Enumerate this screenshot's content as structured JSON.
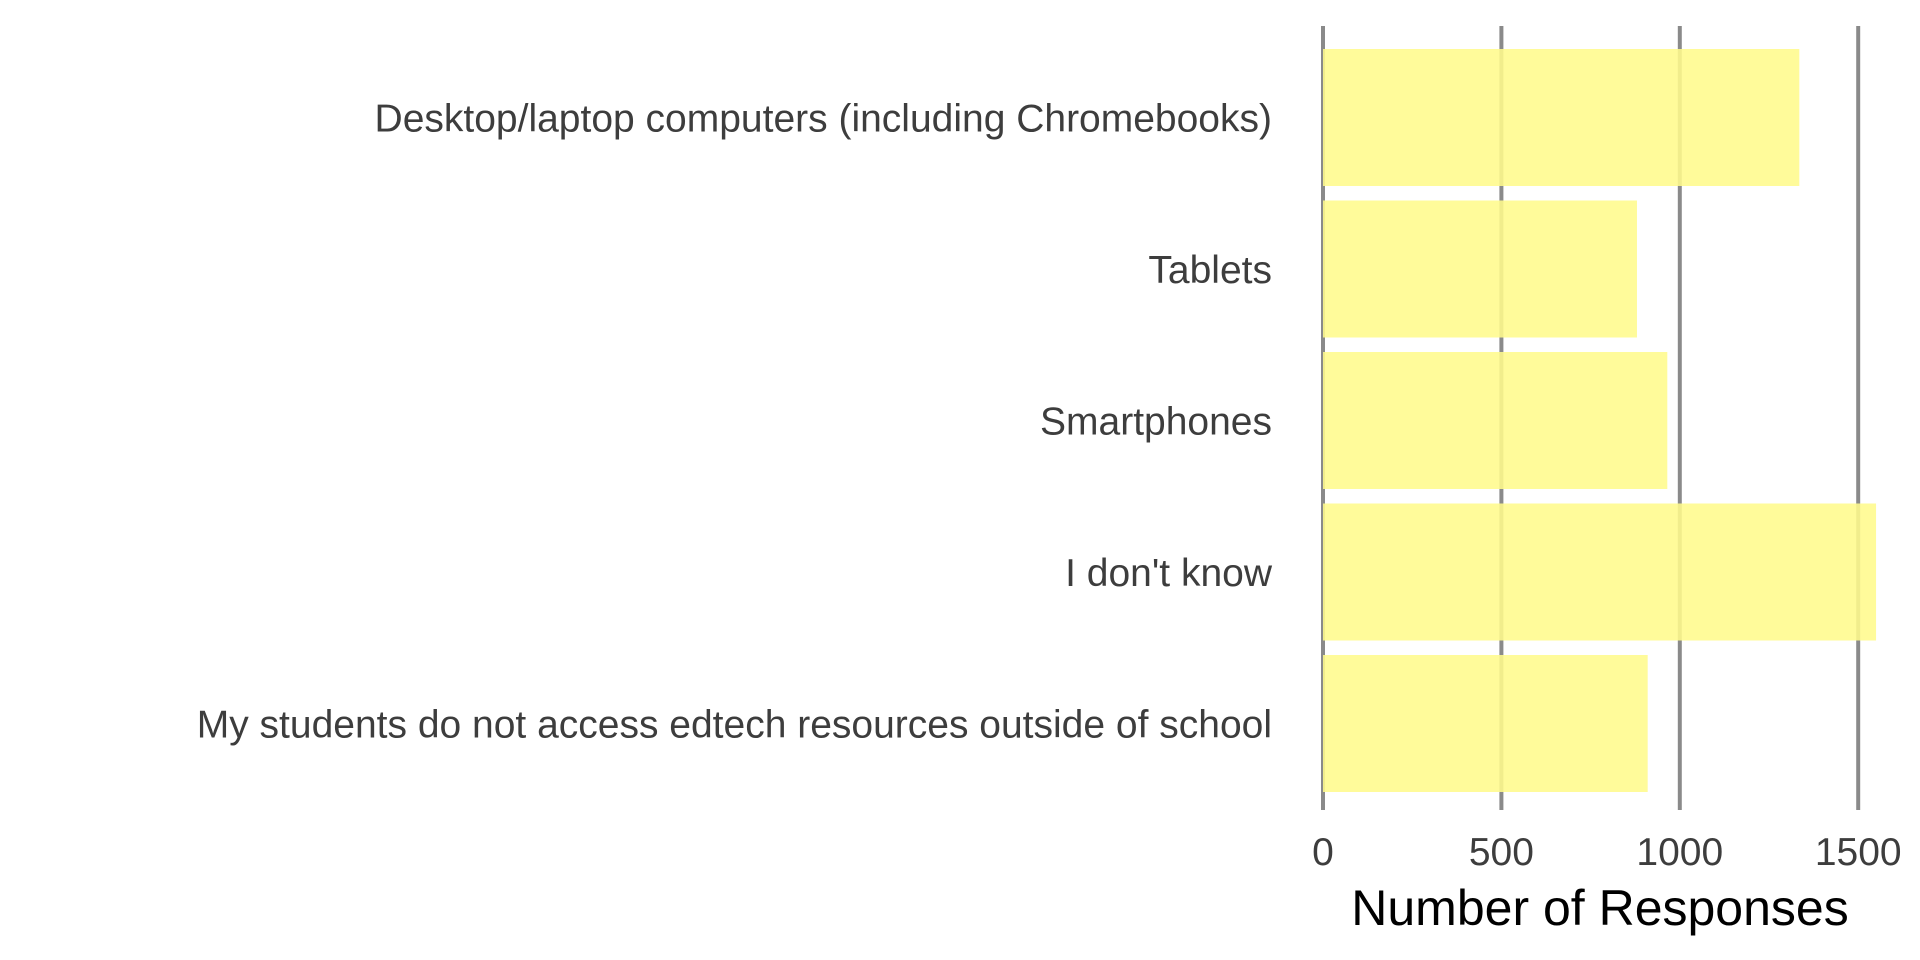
{
  "chart_data": {
    "type": "bar",
    "orientation": "horizontal",
    "title": "",
    "xlabel": "Number of Responses",
    "ylabel": "",
    "categories": [
      "Desktop/laptop computers (including Chromebooks)",
      "Tablets",
      "Smartphones",
      "I don't know",
      "My students do not access edtech resources outside of school"
    ],
    "values": [
      1335,
      880,
      965,
      1550,
      910
    ],
    "xlim": [
      0,
      1550
    ],
    "xticks": [
      0,
      500,
      1000,
      1500
    ],
    "xtick_labels": [
      "0",
      "500",
      "1000",
      "1500"
    ],
    "grid": "vertical major gridlines",
    "legend": "none",
    "colors": {
      "bar": "#fffb8c",
      "gridline": "#8a8a8a",
      "label_text": "#3d3d3d",
      "axis_title": "#000000"
    }
  }
}
